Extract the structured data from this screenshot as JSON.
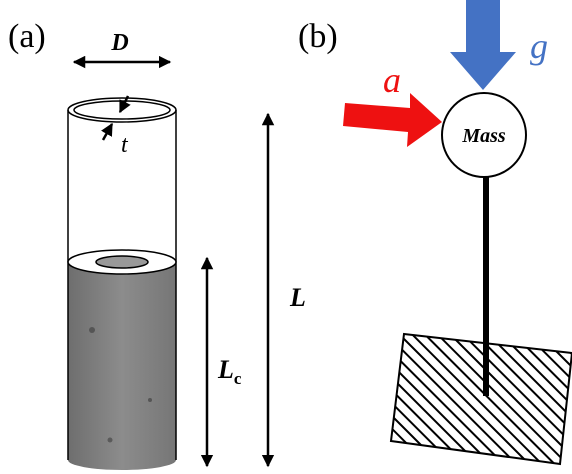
{
  "panel_a": {
    "label": "(a)",
    "diameter": "D",
    "thickness": "t",
    "length": "L",
    "concrete_length": {
      "symbol": "L",
      "subscript": "c"
    }
  },
  "panel_b": {
    "label": "(b)",
    "gravity": "g",
    "acceleration": "a",
    "mass": "Mass"
  }
}
